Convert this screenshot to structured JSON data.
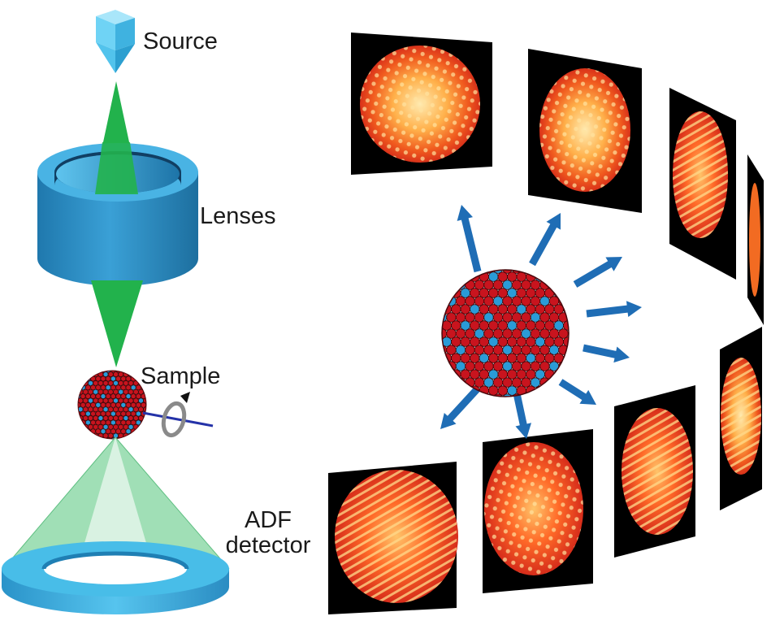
{
  "labels": {
    "source": "Source",
    "lenses": "Lenses",
    "sample": "Sample",
    "detector_line1": "ADF",
    "detector_line2": "detector"
  },
  "colors": {
    "source": "#6fd3f5",
    "beam": "#22b24c",
    "lens": "#2b8fc4",
    "detector": "#3fb8e6",
    "atom_red": "#c8141e",
    "atom_blue": "#2a9bd7",
    "arrow": "#1f6db5",
    "panel": "#000000"
  },
  "icons": {
    "rotation": "rotation-arrow-icon"
  }
}
